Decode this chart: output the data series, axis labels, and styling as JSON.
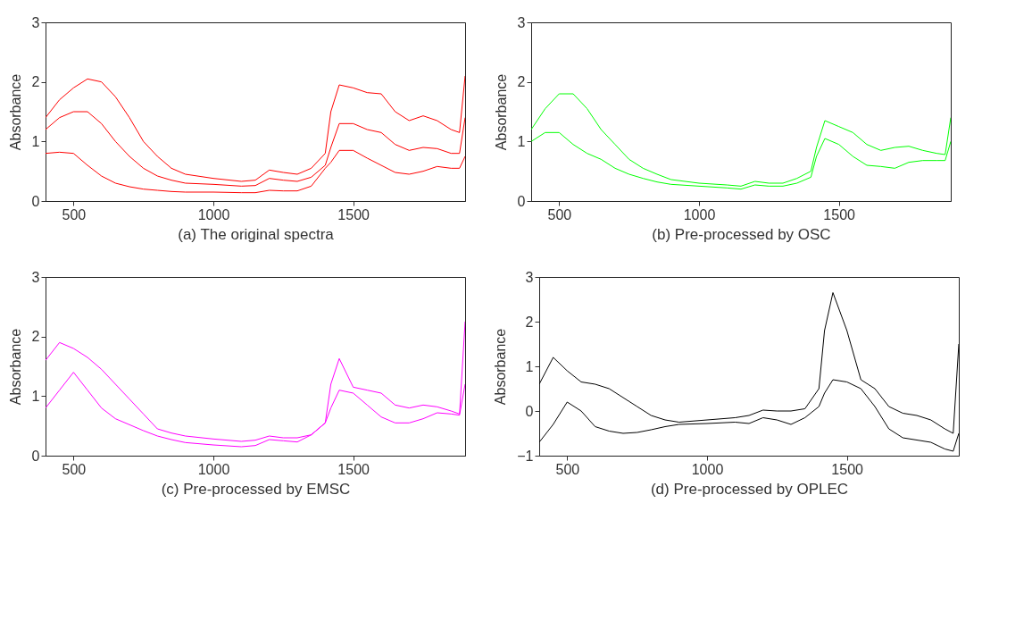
{
  "chart_data": [
    {
      "type": "line",
      "xlabel": "(a) The original spectra",
      "ylabel": "Absorbance",
      "xlim": [
        400,
        1900
      ],
      "xticks": [
        500,
        1000,
        1500
      ],
      "ylim": [
        0,
        3
      ],
      "yticks": [
        0,
        1,
        2,
        3
      ],
      "x": [
        400,
        450,
        500,
        550,
        600,
        650,
        700,
        750,
        800,
        850,
        900,
        1000,
        1100,
        1150,
        1200,
        1250,
        1300,
        1350,
        1400,
        1420,
        1450,
        1500,
        1550,
        1600,
        1650,
        1700,
        1750,
        1800,
        1850,
        1880,
        1900
      ],
      "series": [
        {
          "color": "#ff0000",
          "values": [
            1.4,
            1.7,
            1.9,
            2.05,
            2.0,
            1.75,
            1.4,
            1.0,
            0.75,
            0.55,
            0.45,
            0.38,
            0.33,
            0.35,
            0.52,
            0.48,
            0.45,
            0.55,
            0.8,
            1.5,
            1.95,
            1.9,
            1.82,
            1.8,
            1.5,
            1.35,
            1.43,
            1.35,
            1.2,
            1.15,
            2.1
          ]
        },
        {
          "color": "#ff0000",
          "values": [
            1.2,
            1.4,
            1.5,
            1.5,
            1.3,
            1.0,
            0.75,
            0.55,
            0.42,
            0.35,
            0.3,
            0.28,
            0.25,
            0.26,
            0.38,
            0.35,
            0.33,
            0.4,
            0.6,
            0.9,
            1.3,
            1.3,
            1.2,
            1.15,
            0.95,
            0.85,
            0.9,
            0.88,
            0.8,
            0.8,
            1.4
          ]
        },
        {
          "color": "#ff0000",
          "values": [
            0.8,
            0.82,
            0.8,
            0.6,
            0.42,
            0.3,
            0.24,
            0.2,
            0.18,
            0.16,
            0.15,
            0.15,
            0.14,
            0.14,
            0.18,
            0.17,
            0.17,
            0.25,
            0.55,
            0.65,
            0.85,
            0.85,
            0.72,
            0.6,
            0.48,
            0.45,
            0.5,
            0.58,
            0.55,
            0.55,
            0.75
          ]
        }
      ]
    },
    {
      "type": "line",
      "xlabel": "(b) Pre-processed by OSC",
      "ylabel": "Absorbance",
      "xlim": [
        400,
        1900
      ],
      "xticks": [
        500,
        1000,
        1500
      ],
      "ylim": [
        0,
        3
      ],
      "yticks": [
        0,
        1,
        2,
        3
      ],
      "x": [
        400,
        450,
        500,
        550,
        600,
        650,
        700,
        750,
        800,
        850,
        900,
        1000,
        1100,
        1150,
        1200,
        1250,
        1300,
        1350,
        1400,
        1420,
        1450,
        1500,
        1550,
        1600,
        1650,
        1700,
        1750,
        1800,
        1850,
        1880,
        1900
      ],
      "series": [
        {
          "color": "#00ff00",
          "values": [
            1.2,
            1.55,
            1.8,
            1.8,
            1.55,
            1.2,
            0.95,
            0.7,
            0.55,
            0.45,
            0.36,
            0.3,
            0.27,
            0.25,
            0.33,
            0.3,
            0.3,
            0.38,
            0.5,
            0.9,
            1.35,
            1.25,
            1.15,
            0.95,
            0.85,
            0.9,
            0.92,
            0.85,
            0.8,
            0.78,
            1.4
          ]
        },
        {
          "color": "#00ff00",
          "values": [
            1.0,
            1.15,
            1.15,
            0.95,
            0.8,
            0.7,
            0.55,
            0.45,
            0.38,
            0.32,
            0.28,
            0.25,
            0.22,
            0.2,
            0.27,
            0.25,
            0.25,
            0.3,
            0.4,
            0.75,
            1.05,
            0.95,
            0.75,
            0.6,
            0.58,
            0.55,
            0.65,
            0.68,
            0.68,
            0.68,
            1.0
          ]
        }
      ]
    },
    {
      "type": "line",
      "xlabel": "(c) Pre-processed by EMSC",
      "ylabel": "Absorbance",
      "xlim": [
        400,
        1900
      ],
      "xticks": [
        500,
        1000,
        1500
      ],
      "ylim": [
        0,
        3
      ],
      "yticks": [
        0,
        1,
        2,
        3
      ],
      "x": [
        400,
        450,
        500,
        550,
        600,
        650,
        700,
        750,
        800,
        850,
        900,
        1000,
        1100,
        1150,
        1200,
        1250,
        1300,
        1350,
        1400,
        1420,
        1450,
        1500,
        1550,
        1600,
        1650,
        1700,
        1750,
        1800,
        1850,
        1880,
        1900
      ],
      "series": [
        {
          "color": "#ff00ff",
          "values": [
            1.6,
            1.9,
            1.8,
            1.65,
            1.45,
            1.2,
            0.95,
            0.7,
            0.45,
            0.38,
            0.33,
            0.28,
            0.24,
            0.26,
            0.33,
            0.3,
            0.3,
            0.35,
            0.55,
            1.2,
            1.63,
            1.15,
            1.1,
            1.05,
            0.85,
            0.8,
            0.85,
            0.82,
            0.75,
            0.7,
            2.25
          ]
        },
        {
          "color": "#ff00ff",
          "values": [
            0.8,
            1.1,
            1.4,
            1.1,
            0.8,
            0.62,
            0.52,
            0.42,
            0.33,
            0.27,
            0.22,
            0.18,
            0.15,
            0.17,
            0.27,
            0.25,
            0.23,
            0.35,
            0.55,
            0.8,
            1.1,
            1.05,
            0.85,
            0.65,
            0.55,
            0.55,
            0.62,
            0.72,
            0.7,
            0.68,
            1.2
          ]
        }
      ]
    },
    {
      "type": "line",
      "xlabel": "(d) Pre-processed by OPLEC",
      "ylabel": "Absorbance",
      "xlim": [
        400,
        1900
      ],
      "xticks": [
        500,
        1000,
        1500
      ],
      "ylim": [
        -1,
        3
      ],
      "yticks": [
        -1,
        0,
        1,
        2,
        3
      ],
      "x": [
        400,
        450,
        500,
        550,
        600,
        650,
        700,
        750,
        800,
        850,
        900,
        1000,
        1100,
        1150,
        1200,
        1250,
        1300,
        1350,
        1400,
        1420,
        1450,
        1500,
        1550,
        1600,
        1650,
        1700,
        1750,
        1800,
        1850,
        1880,
        1900
      ],
      "series": [
        {
          "color": "#000000",
          "values": [
            0.6,
            1.2,
            0.9,
            0.65,
            0.6,
            0.5,
            0.3,
            0.1,
            -0.1,
            -0.2,
            -0.25,
            -0.2,
            -0.15,
            -0.1,
            0.02,
            0.0,
            0.0,
            0.05,
            0.5,
            1.8,
            2.65,
            1.8,
            0.7,
            0.5,
            0.1,
            -0.05,
            -0.1,
            -0.2,
            -0.4,
            -0.5,
            1.5
          ]
        },
        {
          "color": "#000000",
          "values": [
            -0.7,
            -0.3,
            0.2,
            0.0,
            -0.35,
            -0.45,
            -0.5,
            -0.48,
            -0.42,
            -0.35,
            -0.3,
            -0.28,
            -0.25,
            -0.28,
            -0.15,
            -0.2,
            -0.3,
            -0.15,
            0.1,
            0.4,
            0.7,
            0.65,
            0.5,
            0.1,
            -0.4,
            -0.6,
            -0.65,
            -0.7,
            -0.85,
            -0.9,
            -0.5
          ]
        }
      ]
    }
  ]
}
